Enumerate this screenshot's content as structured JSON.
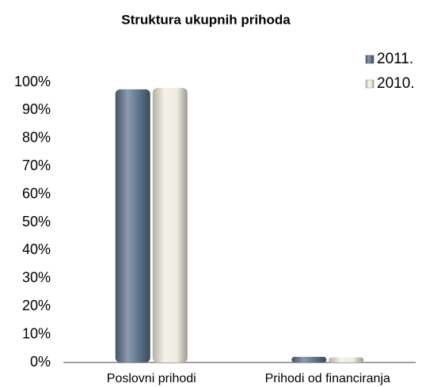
{
  "chart_data": {
    "type": "bar",
    "title": "Struktura ukupnih prihoda",
    "categories": [
      "Poslovni prihodi",
      "Prihodi od financiranja"
    ],
    "series": [
      {
        "name": "2011.",
        "color": "#5a7088",
        "values": [
          97.5,
          2.0
        ]
      },
      {
        "name": "2010.",
        "color": "#efecdf",
        "values": [
          98,
          1.8
        ]
      }
    ],
    "ylim": [
      0,
      100
    ],
    "yticks": [
      {
        "value": 0,
        "label": "0%"
      },
      {
        "value": 10,
        "label": "10%"
      },
      {
        "value": 20,
        "label": "20%"
      },
      {
        "value": 30,
        "label": "30%"
      },
      {
        "value": 40,
        "label": "40%"
      },
      {
        "value": 50,
        "label": "50%"
      },
      {
        "value": 60,
        "label": "60%"
      },
      {
        "value": 70,
        "label": "70%"
      },
      {
        "value": 80,
        "label": "80%"
      },
      {
        "value": 90,
        "label": "90%"
      },
      {
        "value": 100,
        "label": "100%"
      }
    ],
    "grid": false,
    "legend": "top-right"
  }
}
